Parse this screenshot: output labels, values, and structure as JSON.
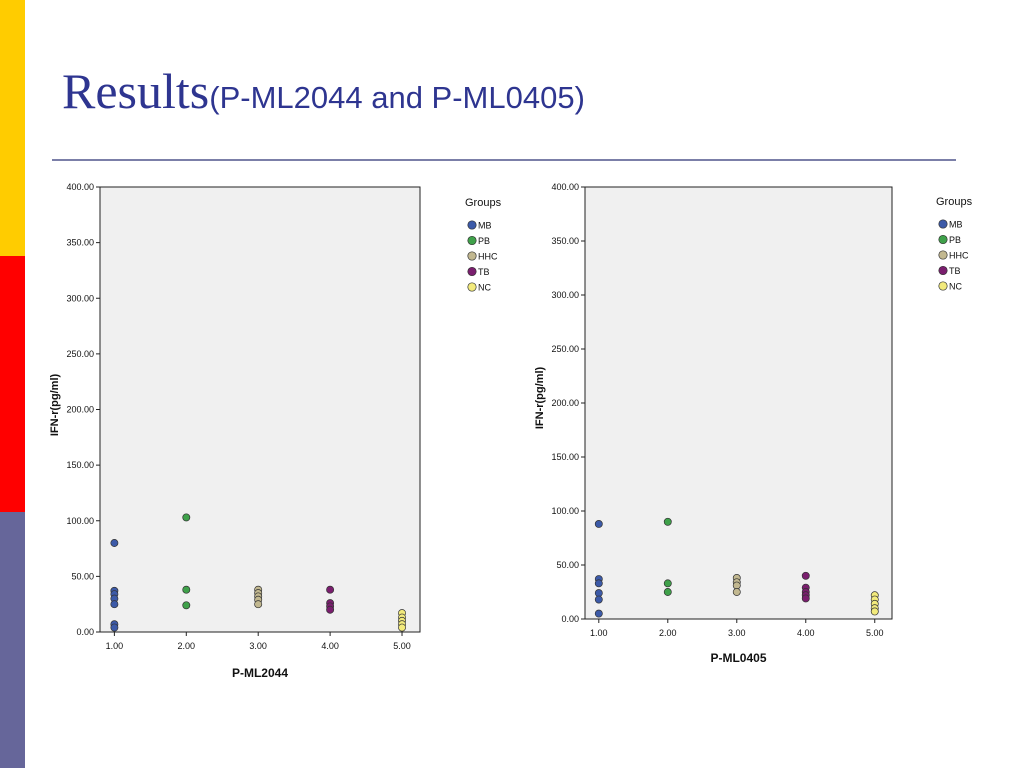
{
  "slide": {
    "title_main": "Results",
    "title_sub": "(P-ML2044 and P-ML0405)",
    "side_bar_colors": [
      "#ffcc00",
      "#ff0000",
      "#66669a"
    ]
  },
  "legend_palette": {
    "MB": "#3c5aa8",
    "PB": "#3fa14a",
    "HHC": "#c2b890",
    "TB": "#7a1e6e",
    "NC": "#f2ea7c"
  },
  "chart_data": [
    {
      "type": "scatter",
      "xlabel": "P-ML2044",
      "ylabel": "IFN-r(pg/ml)",
      "xlim": [
        0.8,
        5.25
      ],
      "ylim": [
        0,
        400
      ],
      "x_ticks": [
        "1.00",
        "2.00",
        "3.00",
        "4.00",
        "5.00"
      ],
      "y_ticks": [
        "0.00",
        "50.00",
        "100.00",
        "150.00",
        "200.00",
        "250.00",
        "300.00",
        "350.00",
        "400.00"
      ],
      "grid": false,
      "legend_title": "Groups",
      "legend_position": "right",
      "series": [
        {
          "name": "MB",
          "color": "#3c5aa8",
          "points": [
            [
              1,
              80
            ],
            [
              1,
              37
            ],
            [
              1,
              34
            ],
            [
              1,
              30
            ],
            [
              1,
              25
            ],
            [
              1,
              7
            ],
            [
              1,
              4
            ]
          ]
        },
        {
          "name": "PB",
          "color": "#3fa14a",
          "points": [
            [
              2,
              103
            ],
            [
              2,
              38
            ],
            [
              2,
              24
            ]
          ]
        },
        {
          "name": "HHC",
          "color": "#c2b890",
          "points": [
            [
              3,
              38
            ],
            [
              3,
              35
            ],
            [
              3,
              32
            ],
            [
              3,
              29
            ],
            [
              3,
              25
            ]
          ]
        },
        {
          "name": "TB",
          "color": "#7a1e6e",
          "points": [
            [
              4,
              38
            ],
            [
              4,
              26
            ],
            [
              4,
              23
            ],
            [
              4,
              20
            ]
          ]
        },
        {
          "name": "NC",
          "color": "#f2ea7c",
          "points": [
            [
              5,
              17
            ],
            [
              5,
              13
            ],
            [
              5,
              10
            ],
            [
              5,
              7
            ],
            [
              5,
              4
            ]
          ]
        }
      ]
    },
    {
      "type": "scatter",
      "xlabel": "P-ML0405",
      "ylabel": "IFN-r(pg/ml)",
      "xlim": [
        0.8,
        5.25
      ],
      "ylim": [
        0,
        400
      ],
      "x_ticks": [
        "1.00",
        "2.00",
        "3.00",
        "4.00",
        "5.00"
      ],
      "y_ticks": [
        "0.00",
        "50.00",
        "100.00",
        "150.00",
        "200.00",
        "250.00",
        "300.00",
        "350.00",
        "400.00"
      ],
      "grid": false,
      "legend_title": "Groups",
      "legend_position": "right",
      "series": [
        {
          "name": "MB",
          "color": "#3c5aa8",
          "points": [
            [
              1,
              88
            ],
            [
              1,
              37
            ],
            [
              1,
              33
            ],
            [
              1,
              24
            ],
            [
              1,
              18
            ],
            [
              1,
              5
            ]
          ]
        },
        {
          "name": "PB",
          "color": "#3fa14a",
          "points": [
            [
              2,
              90
            ],
            [
              2,
              33
            ],
            [
              2,
              25
            ]
          ]
        },
        {
          "name": "HHC",
          "color": "#c2b890",
          "points": [
            [
              3,
              38
            ],
            [
              3,
              34
            ],
            [
              3,
              31
            ],
            [
              3,
              25
            ]
          ]
        },
        {
          "name": "TB",
          "color": "#7a1e6e",
          "points": [
            [
              4,
              40
            ],
            [
              4,
              29
            ],
            [
              4,
              25
            ],
            [
              4,
              22
            ],
            [
              4,
              19
            ]
          ]
        },
        {
          "name": "NC",
          "color": "#f2ea7c",
          "points": [
            [
              5,
              22
            ],
            [
              5,
              18
            ],
            [
              5,
              14
            ],
            [
              5,
              10
            ],
            [
              5,
              7
            ]
          ]
        }
      ]
    }
  ]
}
